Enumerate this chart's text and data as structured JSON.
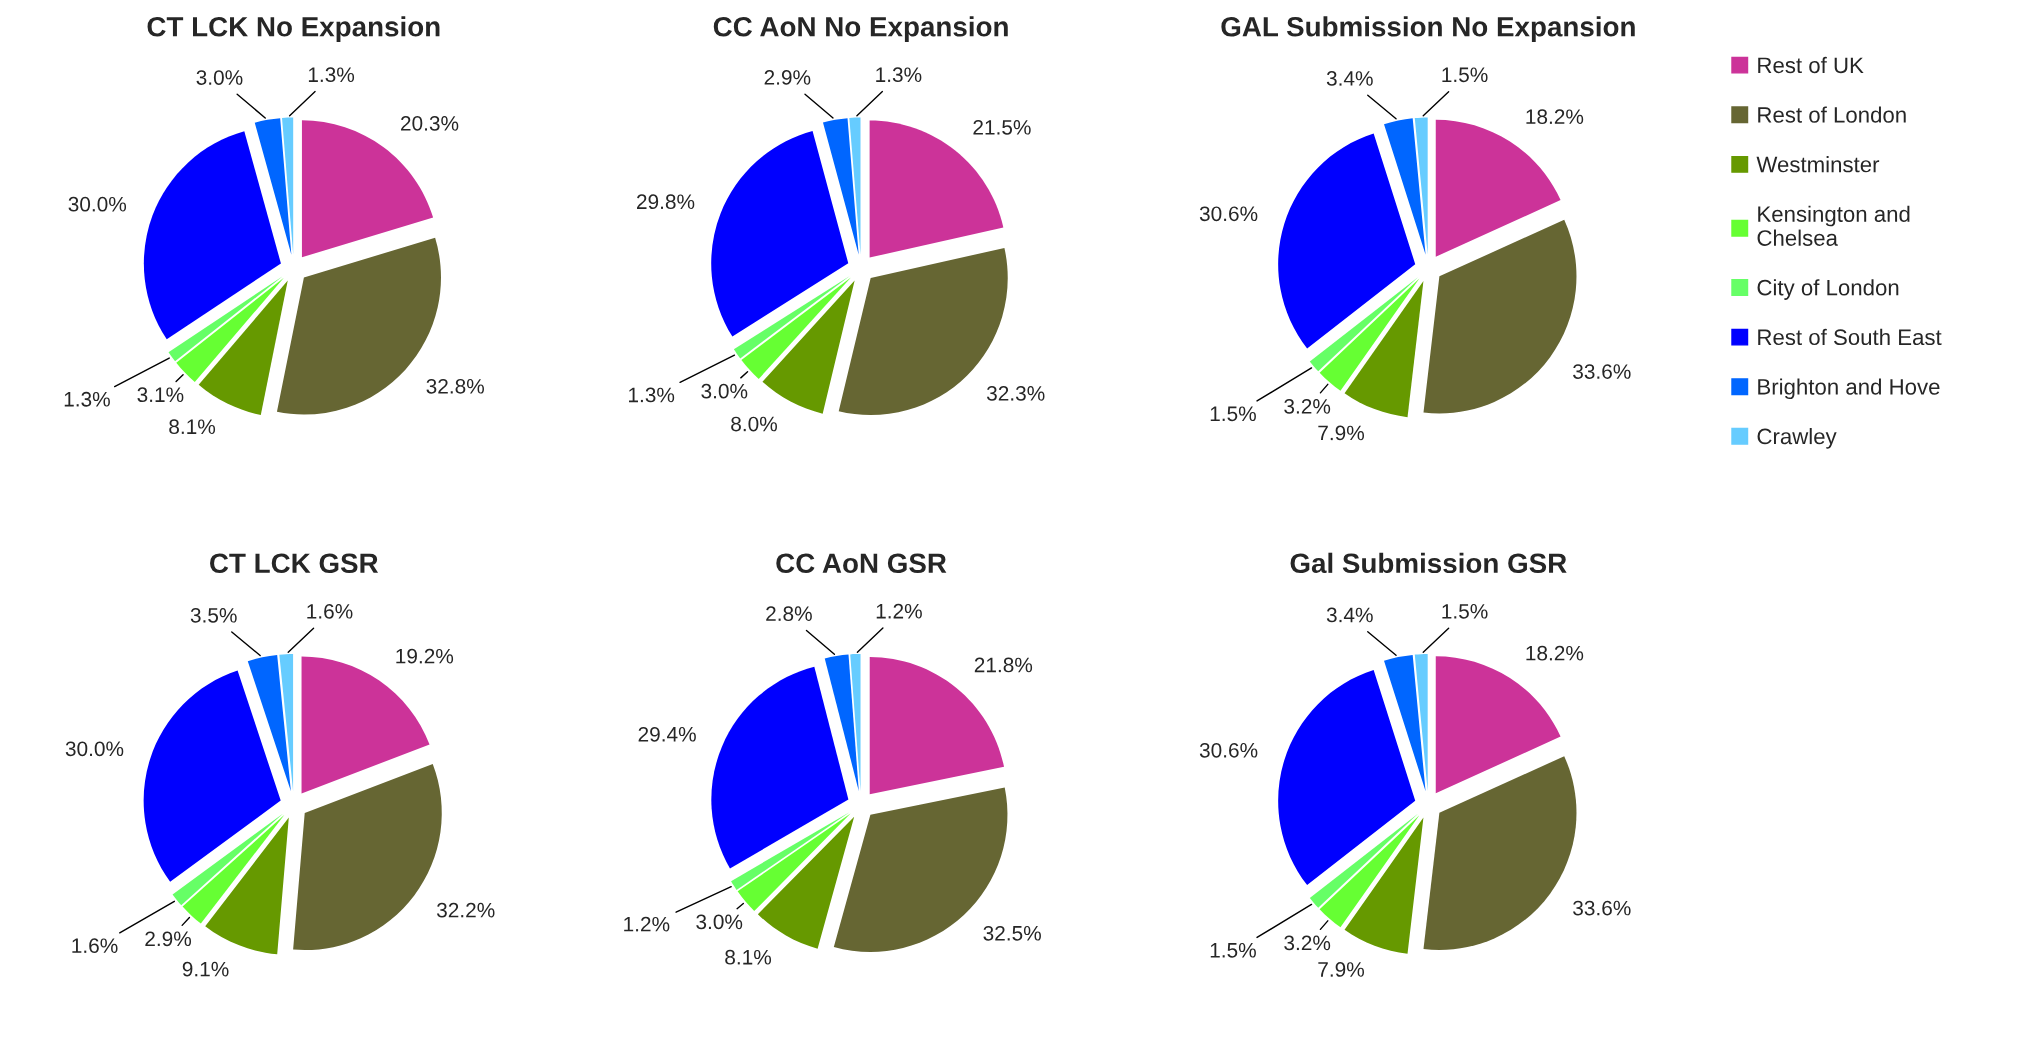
{
  "chart_data": [
    {
      "type": "pie",
      "title": "CT LCK No Expansion",
      "categories": [
        "Rest of UK",
        "Rest of London",
        "Westminster",
        "Kensington and\nChelsea",
        "City of London",
        "Rest of South East",
        "Brighton and Hove",
        "Crawley"
      ],
      "colors": [
        "#cc3399",
        "#666633",
        "#669900",
        "#66ff33",
        "#66ff66",
        "#0000ff",
        "#0066ff",
        "#66ccff"
      ],
      "values": [
        20.3,
        32.8,
        8.1,
        3.1,
        1.3,
        30.0,
        3.0,
        1.3
      ],
      "value_labels": [
        "20.3%",
        "32.8%",
        "8.1%",
        "3.1%",
        "1.3%",
        "30.0%",
        "3.0%",
        "1.3%"
      ],
      "legend": "right"
    },
    {
      "type": "pie",
      "title": "CC AoN No Expansion",
      "colors": [
        "#cc3399",
        "#666633",
        "#669900",
        "#66ff33",
        "#66ff66",
        "#0000ff",
        "#0066ff",
        "#66ccff"
      ],
      "values": [
        21.5,
        32.3,
        8.0,
        3.0,
        1.3,
        29.8,
        2.9,
        1.3
      ],
      "value_labels": [
        "21.5%",
        "32.3%",
        "8.0%",
        "3.0%",
        "1.3%",
        "29.8%",
        "2.9%",
        "1.3%"
      ]
    },
    {
      "type": "pie",
      "title": "GAL Submission No Expansion",
      "colors": [
        "#cc3399",
        "#666633",
        "#669900",
        "#66ff33",
        "#66ff66",
        "#0000ff",
        "#0066ff",
        "#66ccff"
      ],
      "values": [
        18.2,
        33.6,
        7.9,
        3.2,
        1.5,
        30.6,
        3.4,
        1.5
      ],
      "value_labels": [
        "18.2%",
        "33.6%",
        "7.9%",
        "3.2%",
        "1.5%",
        "30.6%",
        "3.4%",
        "1.5%"
      ]
    },
    {
      "type": "pie",
      "title": "CT LCK GSR",
      "colors": [
        "#cc3399",
        "#666633",
        "#669900",
        "#66ff33",
        "#66ff66",
        "#0000ff",
        "#0066ff",
        "#66ccff"
      ],
      "values": [
        19.2,
        32.2,
        9.1,
        2.9,
        1.6,
        30.0,
        3.5,
        1.6
      ],
      "value_labels": [
        "19.2%",
        "32.2%",
        "9.1%",
        "2.9%",
        "1.6%",
        "30.0%",
        "3.5%",
        "1.6%"
      ]
    },
    {
      "type": "pie",
      "title": "CC AoN GSR",
      "colors": [
        "#cc3399",
        "#666633",
        "#669900",
        "#66ff33",
        "#66ff66",
        "#0000ff",
        "#0066ff",
        "#66ccff"
      ],
      "values": [
        21.8,
        32.5,
        8.1,
        3.0,
        1.2,
        29.4,
        2.8,
        1.2
      ],
      "value_labels": [
        "21.8%",
        "32.5%",
        "8.1%",
        "3.0%",
        "1.2%",
        "29.4%",
        "2.8%",
        "1.2%"
      ]
    },
    {
      "type": "pie",
      "title": "Gal Submission GSR",
      "colors": [
        "#cc3399",
        "#666633",
        "#669900",
        "#66ff33",
        "#66ff66",
        "#0000ff",
        "#0066ff",
        "#66ccff"
      ],
      "values": [
        18.2,
        33.6,
        7.9,
        3.2,
        1.5,
        30.6,
        3.4,
        1.5
      ],
      "value_labels": [
        "18.2%",
        "33.6%",
        "7.9%",
        "3.2%",
        "1.5%",
        "30.6%",
        "3.4%",
        "1.5%"
      ]
    }
  ]
}
